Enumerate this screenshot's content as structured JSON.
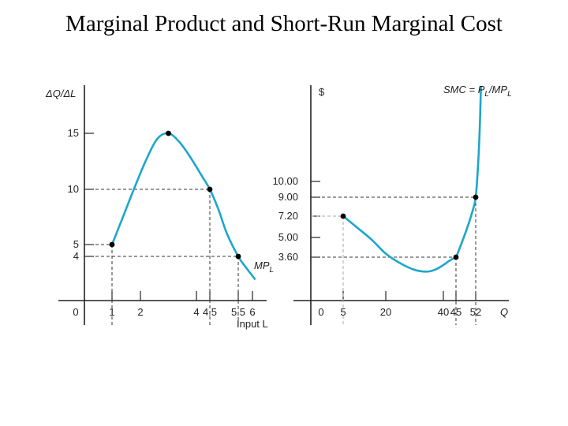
{
  "title": "Marginal Product and Short-Run Marginal Cost",
  "colors": {
    "curve": "#1ea6c9",
    "axis": "#222222",
    "dash_dark": "#333333",
    "dash_light": "#aaaaaa",
    "point": "#000000"
  },
  "chart_data": [
    {
      "type": "line",
      "ylabel": "ΔQ/ΔL",
      "xlabel": "Input L",
      "x_ticks": [
        {
          "x": 0,
          "label": "0"
        },
        {
          "x": 1,
          "label": "1"
        },
        {
          "x": 2,
          "label": "2"
        },
        {
          "x": 4,
          "label": "4"
        },
        {
          "x": 4.5,
          "label": "4.5"
        },
        {
          "x": 5.5,
          "label": "5.5"
        },
        {
          "x": 6,
          "label": "6"
        }
      ],
      "y_ticks": [
        {
          "y": 4,
          "label": "4"
        },
        {
          "x": null,
          "y": 5,
          "label": "5"
        },
        {
          "y": 10,
          "label": "10"
        },
        {
          "y": 15,
          "label": "15"
        }
      ],
      "series": [
        {
          "name": "MPL",
          "x": [
            1,
            1.4,
            1.8,
            2.2,
            2.6,
            3,
            3.4,
            3.8,
            4.2,
            4.5,
            4.8,
            5.1,
            5.5,
            5.8,
            6.1
          ],
          "y": [
            5,
            7.6,
            10.2,
            12.6,
            14.5,
            15,
            14.2,
            12.8,
            11.2,
            10,
            8.2,
            6.0,
            4,
            2.9,
            1.9
          ]
        }
      ],
      "points": [
        {
          "x": 1,
          "y": 5
        },
        {
          "x": 3,
          "y": 15
        },
        {
          "x": 4.5,
          "y": 10
        },
        {
          "x": 5.5,
          "y": 4
        }
      ],
      "ylim": [
        0,
        18
      ],
      "xlim": [
        0,
        6.5
      ]
    },
    {
      "type": "line",
      "ylabel": "$",
      "xlabel": "Q",
      "x_ticks": [
        {
          "x": 0,
          "label": "0"
        },
        {
          "x": 5,
          "label": "5"
        },
        {
          "x": 20,
          "label": "20"
        },
        {
          "x": 40,
          "label": "40"
        },
        {
          "x": 45,
          "label": "45"
        },
        {
          "x": 52,
          "label": "52"
        }
      ],
      "y_ticks": [
        {
          "y": 3.6,
          "label": "3.60"
        },
        {
          "y": 5.0,
          "label": "5.00"
        },
        {
          "y": 7.2,
          "label": "7.20"
        },
        {
          "y": 9.0,
          "label": "9.00"
        },
        {
          "y": 10.0,
          "label": "10.00"
        }
      ],
      "series": [
        {
          "name": "SMC = PL/MPL",
          "x": [
            5,
            10,
            15,
            20,
            25,
            30,
            34,
            37,
            40,
            42,
            44,
            45,
            47,
            49,
            51,
            52,
            52.8,
            53.4,
            53.8
          ],
          "y": [
            7.2,
            6.0,
            4.85,
            3.85,
            3.1,
            2.55,
            2.4,
            2.55,
            2.95,
            3.25,
            3.5,
            3.6,
            4.6,
            6.0,
            7.8,
            9.0,
            11.3,
            14.5,
            18.0
          ]
        }
      ],
      "points": [
        {
          "x": 5,
          "y": 7.2
        },
        {
          "x": 45,
          "y": 3.6
        },
        {
          "x": 52,
          "y": 9.0
        }
      ],
      "ylim": [
        0,
        18
      ],
      "xlim": [
        0,
        58
      ]
    }
  ],
  "labels": {
    "left_ylabel": "ΔQ/ΔL",
    "left_xlabel": "Input L",
    "left_series_main": "MP",
    "left_series_sub": "L",
    "right_ylabel": "$",
    "right_xlabel": "Q",
    "right_eq_a": "SMC = P",
    "right_eq_sub1": "L",
    "right_eq_b": "/MP",
    "right_eq_sub2": "L"
  }
}
